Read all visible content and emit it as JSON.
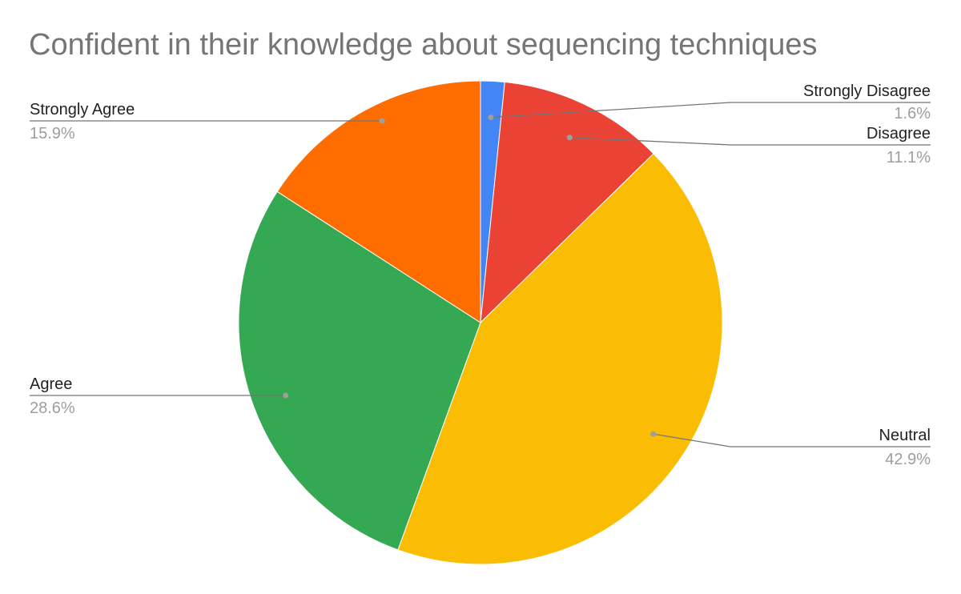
{
  "chart_data": {
    "type": "pie",
    "title": "Confident in their knowledge about sequencing techniques",
    "slices": [
      {
        "label": "Strongly Disagree",
        "value": 1.6,
        "display": "1.6%",
        "color": "#4285f4"
      },
      {
        "label": "Disagree",
        "value": 11.1,
        "display": "11.1%",
        "color": "#ea4335"
      },
      {
        "label": "Neutral",
        "value": 42.9,
        "display": "42.9%",
        "color": "#fbbc04"
      },
      {
        "label": "Agree",
        "value": 28.6,
        "display": "28.6%",
        "color": "#34a853"
      },
      {
        "label": "Strongly Agree",
        "value": 15.9,
        "display": "15.9%",
        "color": "#ff6d01"
      }
    ],
    "start_angle": "12 o'clock",
    "direction": "clockwise",
    "legend": "none (leader-line labels)"
  }
}
